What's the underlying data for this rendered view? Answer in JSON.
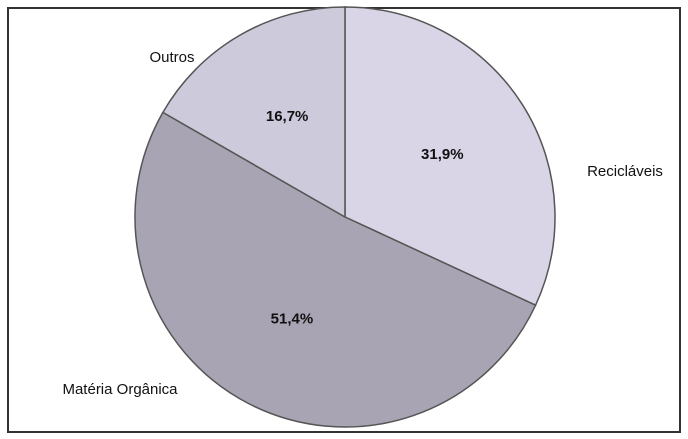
{
  "chart_data": {
    "type": "pie",
    "categories": [
      "Recicláveis",
      "Matéria Orgânica",
      "Outros"
    ],
    "values": [
      31.9,
      51.4,
      16.7
    ],
    "value_labels": [
      "31,9%",
      "51,4%",
      "16,7%"
    ],
    "colors": [
      "#d9d5e6",
      "#a9a4b3",
      "#cdcadb"
    ]
  }
}
